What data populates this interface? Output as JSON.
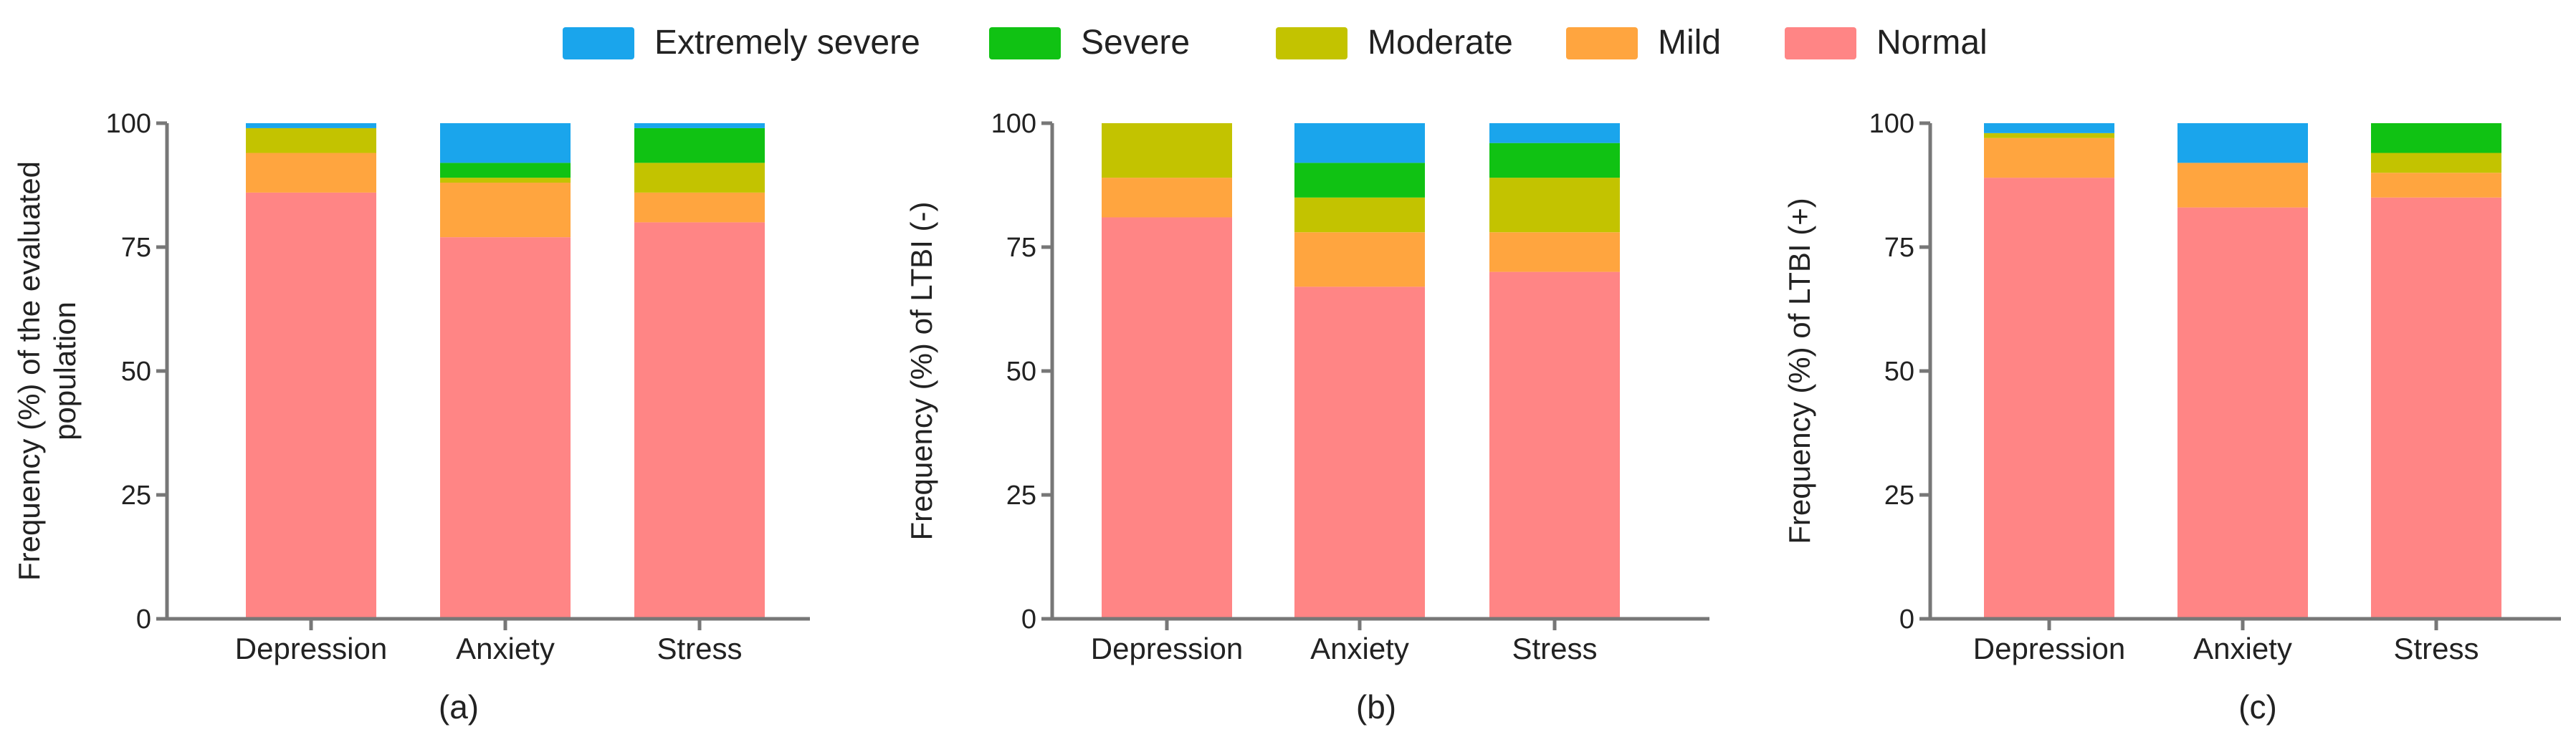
{
  "legend": {
    "items": [
      {
        "label": "Extremely severe",
        "color": "#1aa5ec"
      },
      {
        "label": "Severe",
        "color": "#10c213"
      },
      {
        "label": "Moderate",
        "color": "#c3c300"
      },
      {
        "label": "Mild",
        "color": "#ffa53f"
      },
      {
        "label": "Normal",
        "color": "#ff8585"
      }
    ]
  },
  "chart_data": [
    {
      "type": "bar",
      "stacked": true,
      "panel_label": "(a)",
      "title": "",
      "xlabel": "",
      "ylabel": "Frequency (%) of the evaluated population",
      "ylim": [
        0,
        100
      ],
      "yticks": [
        "0",
        "25",
        "50",
        "75",
        "100"
      ],
      "categories": [
        "Depression",
        "Anxiety",
        "Stress"
      ],
      "series": [
        {
          "name": "Normal",
          "values": [
            86,
            77,
            80
          ]
        },
        {
          "name": "Mild",
          "values": [
            8,
            11,
            6
          ]
        },
        {
          "name": "Moderate",
          "values": [
            5,
            1,
            6
          ]
        },
        {
          "name": "Severe",
          "values": [
            0,
            3,
            7
          ]
        },
        {
          "name": "Extremely severe",
          "values": [
            1,
            8,
            1
          ]
        }
      ]
    },
    {
      "type": "bar",
      "stacked": true,
      "panel_label": "(b)",
      "title": "",
      "xlabel": "",
      "ylabel": "Frequency (%) of LTBI (-)",
      "ylim": [
        0,
        100
      ],
      "yticks": [
        "0",
        "25",
        "50",
        "75",
        "100"
      ],
      "categories": [
        "Depression",
        "Anxiety",
        "Stress"
      ],
      "series": [
        {
          "name": "Normal",
          "values": [
            81,
            67,
            70
          ]
        },
        {
          "name": "Mild",
          "values": [
            8,
            11,
            8
          ]
        },
        {
          "name": "Moderate",
          "values": [
            11,
            7,
            11
          ]
        },
        {
          "name": "Severe",
          "values": [
            0,
            7,
            7
          ]
        },
        {
          "name": "Extremely severe",
          "values": [
            0,
            8,
            4
          ]
        }
      ]
    },
    {
      "type": "bar",
      "stacked": true,
      "panel_label": "(c)",
      "title": "",
      "xlabel": "",
      "ylabel": "Frequency (%) of  LTBI (+)",
      "ylim": [
        0,
        100
      ],
      "yticks": [
        "0",
        "25",
        "50",
        "75",
        "100"
      ],
      "categories": [
        "Depression",
        "Anxiety",
        "Stress"
      ],
      "series": [
        {
          "name": "Normal",
          "values": [
            89,
            83,
            85
          ]
        },
        {
          "name": "Mild",
          "values": [
            8,
            9,
            5
          ]
        },
        {
          "name": "Moderate",
          "values": [
            1,
            0,
            4
          ]
        },
        {
          "name": "Severe",
          "values": [
            0,
            0,
            6
          ]
        },
        {
          "name": "Extremely severe",
          "values": [
            2,
            8,
            0
          ]
        }
      ]
    }
  ]
}
